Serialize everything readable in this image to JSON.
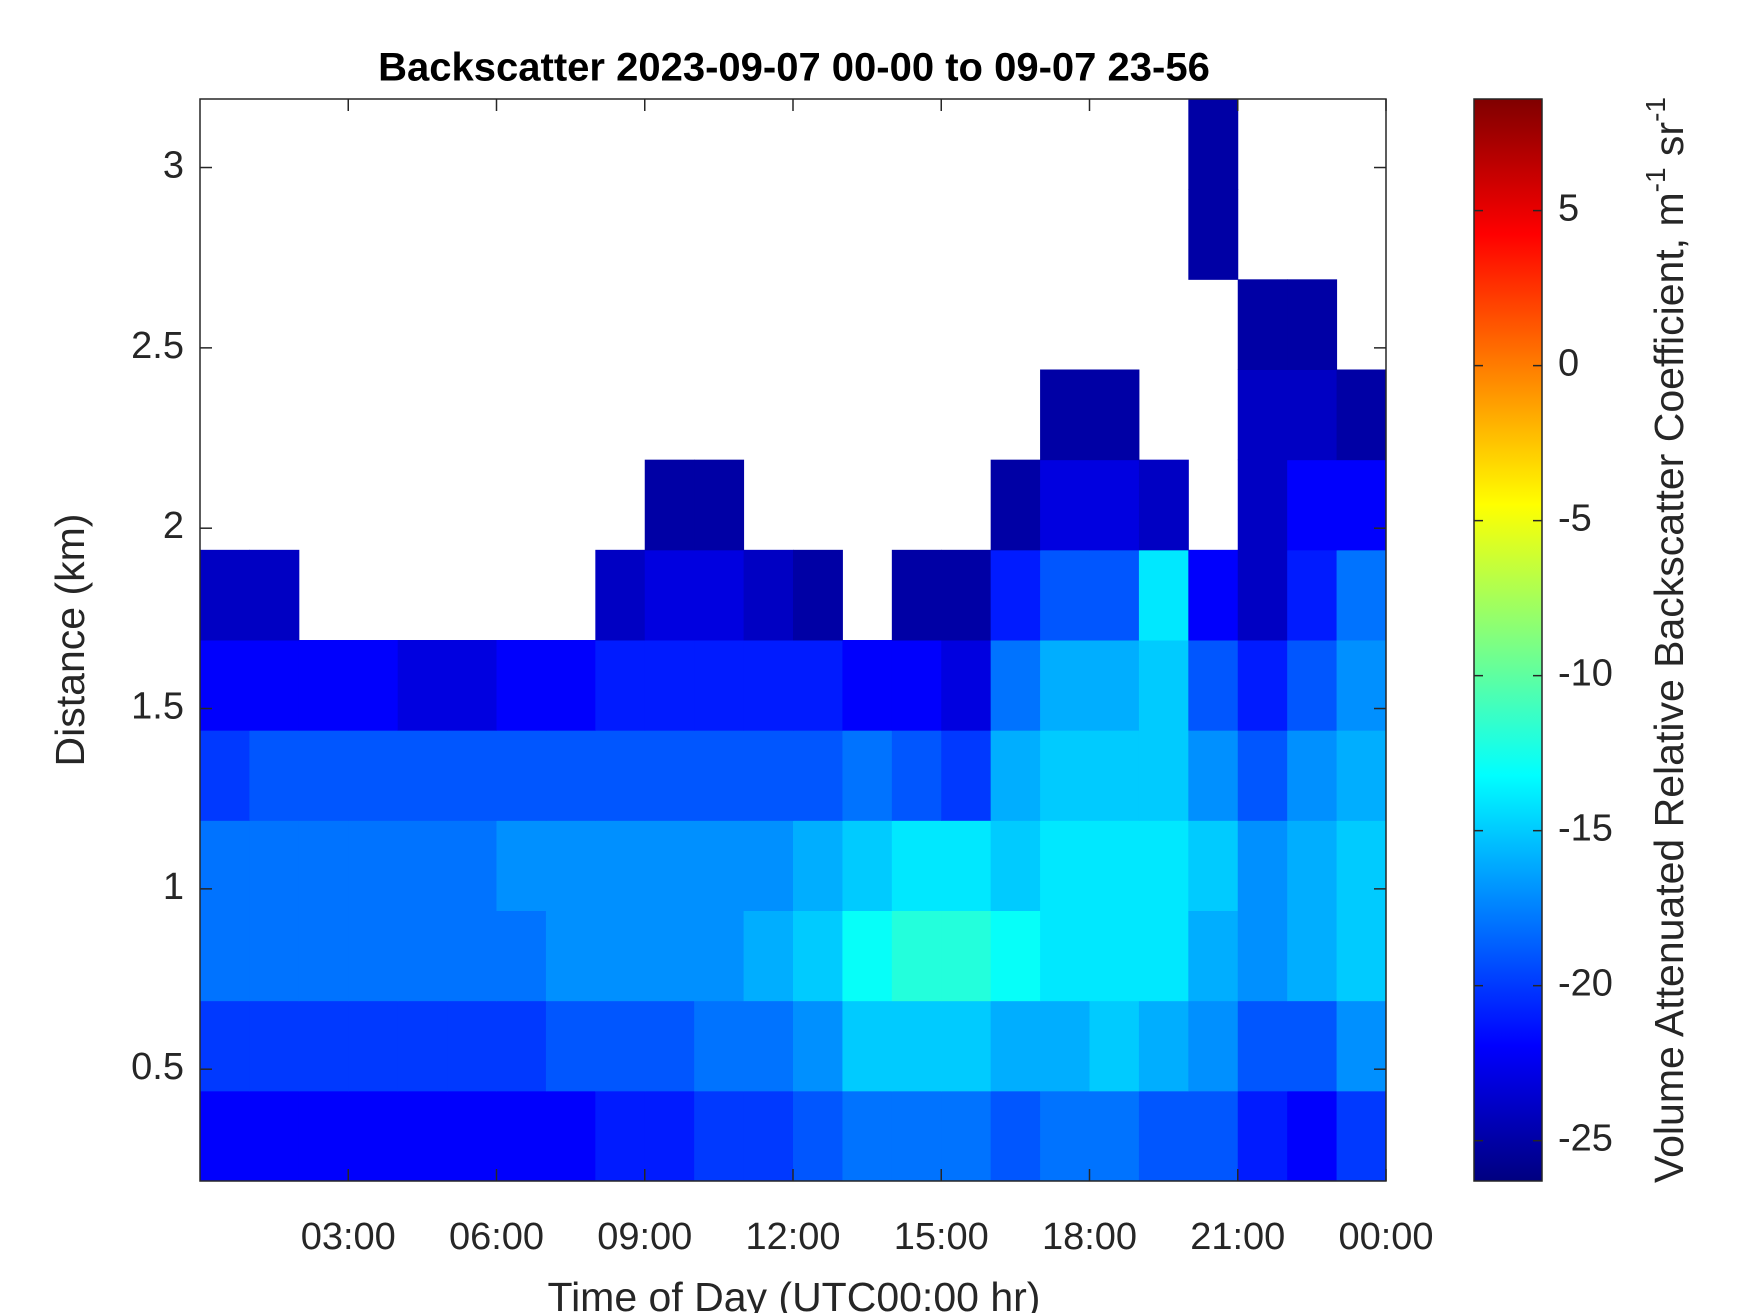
{
  "chart_data": {
    "type": "heatmap",
    "title": "Backscatter 2023-09-07 00-00 to 09-07 23-56",
    "x_label": "Time of Day (UTC00:00 hr)",
    "y_label": "Distance (km)",
    "colorbar_label": [
      "Volume Attenuated Relative Backscatter Coefficient, m",
      "-1",
      " sr",
      "-1"
    ],
    "colormap": "jet",
    "xlim": [
      0,
      24
    ],
    "xticks": [
      {
        "value": 3,
        "label": "03:00"
      },
      {
        "value": 6,
        "label": "06:00"
      },
      {
        "value": 9,
        "label": "09:00"
      },
      {
        "value": 12,
        "label": "12:00"
      },
      {
        "value": 15,
        "label": "15:00"
      },
      {
        "value": 18,
        "label": "18:00"
      },
      {
        "value": 21,
        "label": "21:00"
      },
      {
        "value": 24,
        "label": "00:00"
      }
    ],
    "ylim": [
      0.19,
      3.19
    ],
    "yticks": [
      0.5,
      1,
      1.5,
      2,
      2.5,
      3
    ],
    "clim": [
      -26.3,
      8.6
    ],
    "cticks": [
      -25,
      -20,
      -15,
      -10,
      -5,
      0,
      5
    ],
    "x_bins": [
      0,
      1,
      2,
      3,
      4,
      5,
      6,
      7,
      8,
      9,
      10,
      11,
      12,
      13,
      14,
      15,
      16,
      17,
      18,
      19,
      20,
      21,
      22,
      23,
      24
    ],
    "y_bins": [
      0.19,
      0.44,
      0.69,
      0.94,
      1.19,
      1.44,
      1.69,
      1.94,
      2.19,
      2.44,
      2.69,
      2.94,
      3.19
    ],
    "values": [
      [
        -22,
        -22,
        -22,
        -22,
        -22,
        -22,
        -22,
        -22,
        -21,
        -21,
        -20,
        -20,
        -19,
        -18,
        -18,
        -18,
        -19,
        -18,
        -18,
        -19,
        -19,
        -21,
        -22,
        -20
      ],
      [
        -20,
        -20,
        -20,
        -20,
        -20,
        -20,
        -20,
        -19,
        -19,
        -19,
        -18,
        -18,
        -17,
        -15,
        -15,
        -15,
        -16,
        -16,
        -15,
        -16,
        -17,
        -19,
        -19,
        -17
      ],
      [
        -18,
        -18,
        -18,
        -18,
        -18,
        -18,
        -18,
        -17,
        -17,
        -17,
        -17,
        -16,
        -15,
        -13,
        -12,
        -12,
        -13,
        -14,
        -14,
        -14,
        -16,
        -17,
        -16,
        -15
      ],
      [
        -18,
        -18,
        -18,
        -18,
        -18,
        -18,
        -17,
        -17,
        -17,
        -17,
        -17,
        -17,
        -16,
        -15,
        -14,
        -14,
        -15,
        -14,
        -14,
        -14,
        -15,
        -17,
        -16,
        -15
      ],
      [
        -20,
        -19,
        -19,
        -19,
        -19,
        -19,
        -19,
        -19,
        -19,
        -19,
        -19,
        -19,
        -19,
        -18,
        -19,
        -20,
        -16,
        -15,
        -15,
        -15,
        -17,
        -19,
        -17,
        -16
      ],
      [
        -22,
        -22,
        -22,
        -22,
        -23,
        -23,
        -22,
        -22,
        -21,
        -21,
        -21,
        -21,
        -21,
        -22,
        -22,
        -23,
        -18,
        -16,
        -16,
        -15,
        -19,
        -21,
        -19,
        -17
      ],
      [
        -24,
        -24,
        null,
        null,
        null,
        null,
        null,
        null,
        -24,
        -23,
        -23,
        -24,
        -25,
        null,
        -25,
        -25,
        -21,
        -19,
        -19,
        -14,
        -22,
        -24,
        -21,
        -18
      ],
      [
        null,
        null,
        null,
        null,
        null,
        null,
        null,
        null,
        null,
        -25,
        -25,
        null,
        null,
        null,
        null,
        null,
        -25,
        -23,
        -23,
        -24,
        null,
        -24,
        -22,
        -22
      ],
      [
        null,
        null,
        null,
        null,
        null,
        null,
        null,
        null,
        null,
        null,
        null,
        null,
        null,
        null,
        null,
        null,
        null,
        -25,
        -25,
        null,
        null,
        -24,
        -24,
        -25
      ],
      [
        null,
        null,
        null,
        null,
        null,
        null,
        null,
        null,
        null,
        null,
        null,
        null,
        null,
        null,
        null,
        null,
        null,
        null,
        null,
        null,
        null,
        -25,
        -25,
        null
      ],
      [
        null,
        null,
        null,
        null,
        null,
        null,
        null,
        null,
        null,
        null,
        null,
        null,
        null,
        null,
        null,
        null,
        null,
        null,
        null,
        null,
        -25,
        null,
        null,
        null
      ],
      [
        null,
        null,
        null,
        null,
        null,
        null,
        null,
        null,
        null,
        null,
        null,
        null,
        null,
        null,
        null,
        null,
        null,
        null,
        null,
        null,
        -25,
        null,
        null,
        null
      ]
    ]
  }
}
